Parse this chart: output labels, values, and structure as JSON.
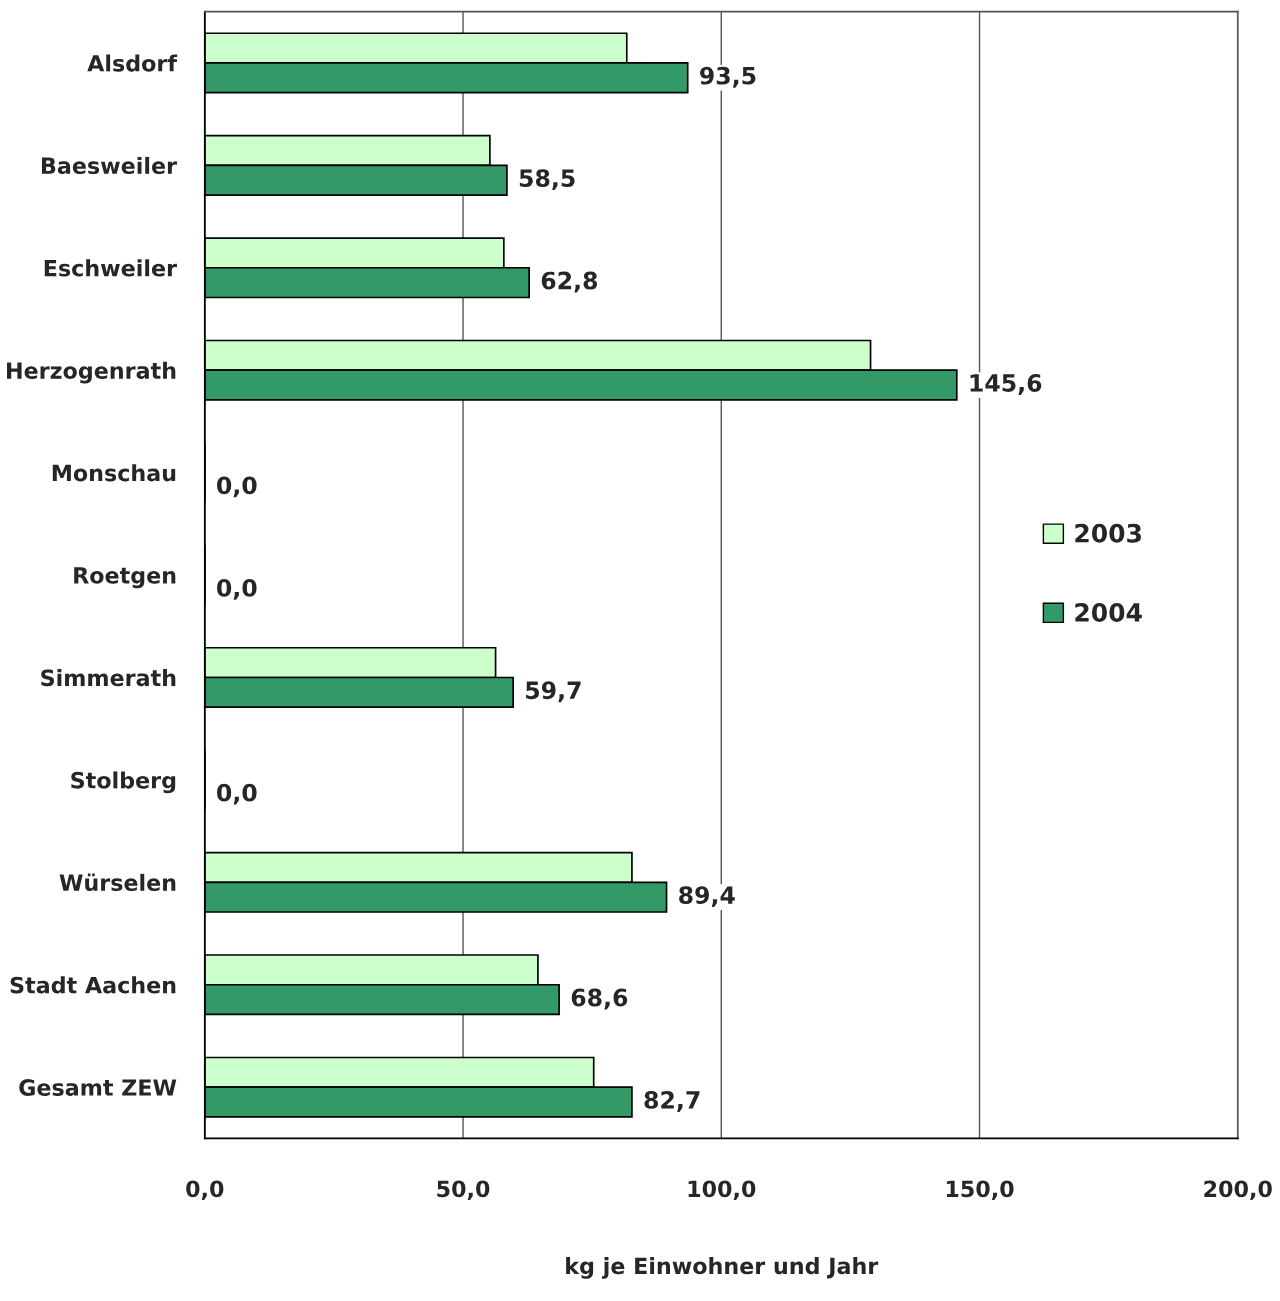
{
  "chart_data": {
    "type": "bar",
    "orientation": "horizontal",
    "xlabel": "kg je Einwohner und Jahr",
    "categories": [
      "Alsdorf",
      "Baesweiler",
      "Eschweiler",
      "Herzogenrath",
      "Monschau",
      "Roetgen",
      "Simmerath",
      "Stolberg",
      "Würselen",
      "Stadt Aachen",
      "Gesamt ZEW"
    ],
    "series": [
      {
        "name": "2003",
        "color": "#ccffcc",
        "values": [
          81.7,
          55.2,
          57.9,
          128.9,
          0,
          0,
          56.3,
          0,
          82.7,
          64.5,
          75.3
        ]
      },
      {
        "name": "2004",
        "color": "#339966",
        "values": [
          93.5,
          58.5,
          62.8,
          145.6,
          0,
          0,
          59.7,
          0,
          89.4,
          68.6,
          82.7
        ],
        "value_labels": [
          "93,5",
          "58,5",
          "62,8",
          "145,6",
          "0,0",
          "0,0",
          "59,7",
          "0,0",
          "89,4",
          "68,6",
          "82,7"
        ]
      }
    ],
    "xlim": [
      0,
      200
    ],
    "xticks": [
      {
        "value": 0,
        "label": "0,0"
      },
      {
        "value": 50,
        "label": "50,0"
      },
      {
        "value": 100,
        "label": "100,0"
      },
      {
        "value": 150,
        "label": "150,0"
      },
      {
        "value": 200,
        "label": "200,0"
      }
    ],
    "grid": "x",
    "legend": "right"
  }
}
